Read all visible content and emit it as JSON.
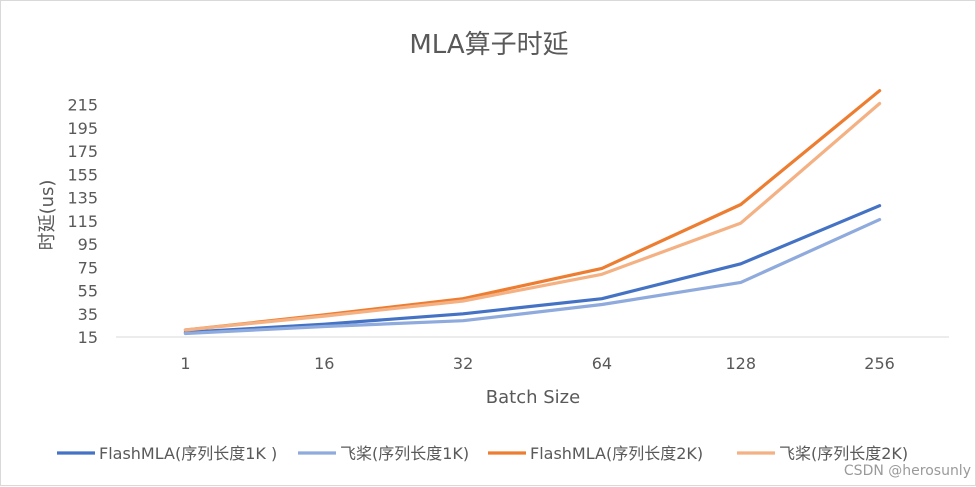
{
  "chart_data": {
    "type": "line",
    "title": "MLA算子时延",
    "xlabel": "Batch Size",
    "ylabel": "时延(us)",
    "categories": [
      "1",
      "16",
      "32",
      "64",
      "128",
      "256"
    ],
    "ylim": [
      15,
      225
    ],
    "yticks": [
      15,
      35,
      55,
      75,
      95,
      115,
      135,
      155,
      175,
      195,
      215
    ],
    "grid": false,
    "legend_position": "bottom",
    "series": [
      {
        "name": "FlashMLA(序列长度1K )",
        "color": "#4472c4",
        "values": [
          19,
          26,
          35,
          48,
          78,
          128
        ]
      },
      {
        "name": "飞桨(序列长度1K)",
        "color": "#8faadc",
        "values": [
          18,
          24,
          29,
          43,
          62,
          116
        ]
      },
      {
        "name": "FlashMLA(序列长度2K)",
        "color": "#ed7d31",
        "values": [
          21,
          34,
          48,
          74,
          129,
          227
        ]
      },
      {
        "name": "飞桨(序列长度2K)",
        "color": "#f4b183",
        "values": [
          21,
          33,
          46,
          69,
          113,
          216
        ]
      }
    ]
  },
  "watermark": "CSDN @herosunly"
}
